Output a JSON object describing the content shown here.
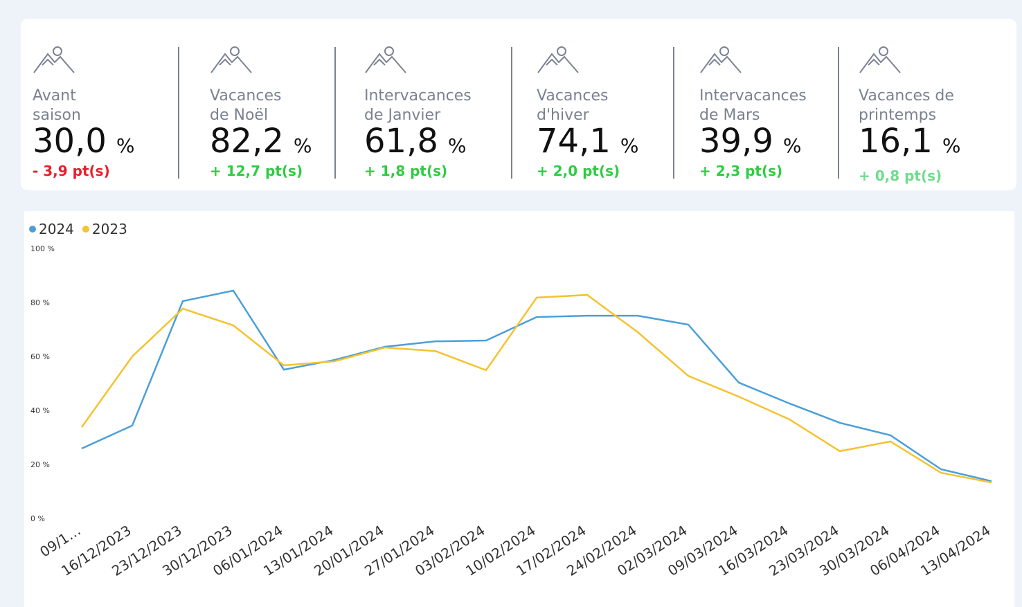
{
  "kpis": [
    {
      "label_lines": [
        "Avant",
        "saison"
      ],
      "value": "30,0",
      "unit": "%",
      "delta": "- 3,9 pt(s)",
      "delta_color": "#e8202a"
    },
    {
      "label_lines": [
        "Vacances",
        "de Noël"
      ],
      "value": "82,2",
      "unit": "%",
      "delta": "+ 12,7 pt(s)",
      "delta_color": "#2ecc40"
    },
    {
      "label_lines": [
        "Intervacances",
        "de Janvier"
      ],
      "value": "61,8",
      "unit": "%",
      "delta": "+ 1,8 pt(s)",
      "delta_color": "#2ecc40"
    },
    {
      "label_lines": [
        "Vacances",
        "d'hiver"
      ],
      "value": "74,1",
      "unit": "%",
      "delta": "+ 2,0 pt(s)",
      "delta_color": "#2ecc40"
    },
    {
      "label_lines": [
        "Intervacances",
        "de Mars"
      ],
      "value": "39,9",
      "unit": "%",
      "delta": "+ 2,3 pt(s)",
      "delta_color": "#2ecc40"
    },
    {
      "label_lines": [
        "Vacances de",
        "printemps"
      ],
      "value": "16,1",
      "unit": "%",
      "delta": "+ 0,8 pt(s)",
      "delta_color": "#6fdc8c"
    }
  ],
  "chart_data": {
    "type": "line",
    "categories": [
      "09/1…",
      "16/12/2023",
      "23/12/2023",
      "30/12/2023",
      "06/01/2024",
      "13/01/2024",
      "20/01/2024",
      "27/01/2024",
      "03/02/2024",
      "10/02/2024",
      "17/02/2024",
      "24/02/2024",
      "02/03/2024",
      "09/03/2024",
      "16/03/2024",
      "23/03/2024",
      "30/03/2024",
      "06/04/2024",
      "13/04/2024"
    ],
    "series": [
      {
        "name": "2024",
        "color": "#4a9fd8",
        "values": [
          25.9,
          34.4,
          80.5,
          84.4,
          55.1,
          58.7,
          63.6,
          65.6,
          65.9,
          74.6,
          75.1,
          75.1,
          71.8,
          50.3,
          42.6,
          35.4,
          30.8,
          18.2,
          13.8
        ]
      },
      {
        "name": "2023",
        "color": "#f5c230",
        "values": [
          33.8,
          60,
          77.7,
          71.5,
          56.7,
          58.2,
          63.3,
          62,
          54.9,
          81.8,
          82.8,
          69,
          52.8,
          45.1,
          36.7,
          24.9,
          28.5,
          16.9,
          13.3
        ]
      }
    ],
    "ylim": [
      0,
      100
    ],
    "yticks": [
      {
        "value": 0,
        "label": "0 %"
      },
      {
        "value": 20,
        "label": "20 %"
      },
      {
        "value": 40,
        "label": "40 %"
      },
      {
        "value": 60,
        "label": "60 %"
      },
      {
        "value": 80,
        "label": "80 %"
      },
      {
        "value": 100,
        "label": "100 %"
      }
    ],
    "legend": "top-left"
  }
}
